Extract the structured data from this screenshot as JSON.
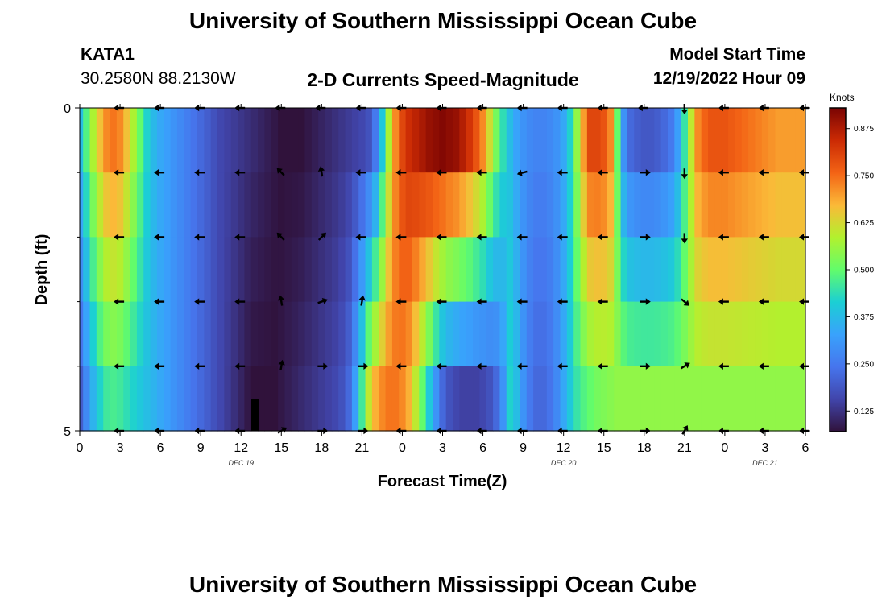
{
  "page": {
    "title": "University of Southern Mississippi Ocean Cube",
    "title_repeat": "University of Southern Mississippi Ocean Cube",
    "station": "KATA1",
    "coords": "30.2580N  88.2130W",
    "subtitle": "2-D Currents Speed-Magnitude",
    "model_start_label": "Model Start Time",
    "model_start_value": "12/19/2022 Hour 09"
  },
  "chart_data": {
    "type": "heatmap",
    "title": "2-D Currents Speed-Magnitude",
    "xlabel": "Forecast Time(Z)",
    "ylabel": "Depth (ft)",
    "x_tick_labels": [
      "0",
      "3",
      "6",
      "9",
      "12",
      "15",
      "18",
      "21",
      "0",
      "3",
      "6",
      "9",
      "12",
      "15",
      "18",
      "21",
      "0",
      "3",
      "6"
    ],
    "x_tick_hours": [
      0,
      3,
      6,
      9,
      12,
      15,
      18,
      21,
      24,
      27,
      30,
      33,
      36,
      39,
      42,
      45,
      48,
      51,
      54
    ],
    "date_labels": [
      {
        "text": "DEC 19",
        "hour": 12
      },
      {
        "text": "DEC 20",
        "hour": 36
      },
      {
        "text": "DEC 21",
        "hour": 51
      }
    ],
    "xlim": [
      0,
      54
    ],
    "ylim": [
      0,
      5
    ],
    "y_tick_labels": [
      "0",
      "5"
    ],
    "y_tick_depths": [
      0,
      5
    ],
    "y_minor_depths": [
      1,
      2,
      3,
      4
    ],
    "colorbar": {
      "unit": "Knots",
      "min": 0.07,
      "max": 0.93,
      "ticks": [
        0.125,
        0.25,
        0.375,
        0.5,
        0.625,
        0.75,
        0.875
      ],
      "tick_labels": [
        "0.125",
        "0.250",
        "0.375",
        "0.500",
        "0.625",
        "0.750",
        "0.875"
      ]
    },
    "speed_profile": {
      "hours": [
        0,
        0.5,
        1,
        1.5,
        2,
        2.5,
        3,
        3.5,
        4,
        4.5,
        5,
        5.5,
        6,
        6.5,
        7,
        7.5,
        8,
        8.5,
        9,
        9.5,
        10,
        10.5,
        11,
        11.5,
        12,
        12.5,
        13,
        13.5,
        14,
        14.5,
        15,
        15.5,
        16,
        16.5,
        17,
        17.5,
        18,
        18.5,
        19,
        19.5,
        20,
        20.5,
        21,
        21.5,
        22,
        22.5,
        23,
        23.5,
        24,
        24.5,
        25,
        25.5,
        26,
        26.5,
        27,
        27.5,
        28,
        28.5,
        29,
        29.5,
        30,
        30.5,
        31,
        31.5,
        32,
        32.5,
        33,
        33.5,
        34,
        34.5,
        35,
        35.5,
        36,
        36.5,
        37,
        37.5,
        38,
        38.5,
        39,
        39.5,
        40,
        40.5,
        41,
        41.5,
        42,
        42.5,
        43,
        43.5,
        44,
        44.5,
        45,
        45.5,
        46,
        46.5,
        47,
        47.5,
        48,
        48.5,
        49,
        49.5,
        50,
        50.5,
        51,
        51.5,
        52,
        52.5,
        53,
        53.5,
        54
      ],
      "surface": [
        0.38,
        0.48,
        0.58,
        0.66,
        0.72,
        0.74,
        0.72,
        0.66,
        0.58,
        0.5,
        0.42,
        0.37,
        0.34,
        0.32,
        0.3,
        0.28,
        0.26,
        0.24,
        0.22,
        0.2,
        0.18,
        0.16,
        0.15,
        0.14,
        0.13,
        0.12,
        0.11,
        0.1,
        0.09,
        0.08,
        0.07,
        0.07,
        0.07,
        0.07,
        0.08,
        0.09,
        0.1,
        0.11,
        0.12,
        0.13,
        0.14,
        0.15,
        0.16,
        0.18,
        0.25,
        0.4,
        0.58,
        0.72,
        0.8,
        0.84,
        0.86,
        0.88,
        0.9,
        0.91,
        0.92,
        0.91,
        0.9,
        0.87,
        0.83,
        0.78,
        0.72,
        0.62,
        0.52,
        0.44,
        0.38,
        0.33,
        0.3,
        0.28,
        0.27,
        0.27,
        0.28,
        0.3,
        0.34,
        0.42,
        0.55,
        0.7,
        0.8,
        0.8,
        0.78,
        0.72,
        0.5,
        0.3,
        0.22,
        0.2,
        0.19,
        0.19,
        0.2,
        0.22,
        0.25,
        0.32,
        0.45,
        0.6,
        0.72,
        0.76,
        0.78,
        0.78,
        0.78,
        0.77,
        0.76,
        0.75,
        0.74,
        0.73,
        0.72,
        0.71,
        0.7,
        0.7,
        0.7,
        0.7,
        0.7
      ],
      "bottom": [
        0.2,
        0.28,
        0.36,
        0.42,
        0.46,
        0.47,
        0.46,
        0.44,
        0.42,
        0.4,
        0.38,
        0.36,
        0.34,
        0.32,
        0.3,
        0.28,
        0.26,
        0.24,
        0.22,
        0.2,
        0.18,
        0.16,
        0.14,
        0.12,
        0.1,
        0.08,
        0.07,
        0.07,
        0.07,
        0.07,
        0.08,
        0.09,
        0.1,
        0.11,
        0.12,
        0.13,
        0.14,
        0.15,
        0.16,
        0.18,
        0.22,
        0.32,
        0.46,
        0.6,
        0.68,
        0.72,
        0.74,
        0.74,
        0.72,
        0.68,
        0.6,
        0.5,
        0.4,
        0.3,
        0.22,
        0.18,
        0.16,
        0.15,
        0.15,
        0.15,
        0.16,
        0.18,
        0.22,
        0.3,
        0.42,
        0.38,
        0.3,
        0.25,
        0.22,
        0.22,
        0.24,
        0.28,
        0.34,
        0.4,
        0.45,
        0.48,
        0.5,
        0.52,
        0.53,
        0.54,
        0.55,
        0.55,
        0.55,
        0.55,
        0.55,
        0.55,
        0.55,
        0.55,
        0.55,
        0.55,
        0.55,
        0.55,
        0.55,
        0.55,
        0.55,
        0.55,
        0.55,
        0.55,
        0.55,
        0.55,
        0.55,
        0.55,
        0.55,
        0.55,
        0.55,
        0.55,
        0.55,
        0.55,
        0.55
      ]
    },
    "vector_hours": [
      3,
      6,
      9,
      12,
      15,
      18,
      21,
      24,
      27,
      30,
      33,
      36,
      39,
      42,
      45,
      48,
      51,
      54
    ],
    "vector_depths": [
      0,
      1,
      2,
      3,
      4,
      5
    ],
    "vector_directions_deg": [
      [
        180,
        180,
        180,
        180,
        180,
        180,
        180,
        180,
        180,
        180,
        180,
        180,
        180,
        180,
        270,
        180,
        180,
        180
      ],
      [
        180,
        180,
        180,
        180,
        135,
        100,
        180,
        180,
        180,
        180,
        195,
        180,
        180,
        0,
        270,
        180,
        180,
        180
      ],
      [
        180,
        180,
        180,
        180,
        135,
        45,
        180,
        180,
        180,
        180,
        180,
        180,
        180,
        0,
        270,
        180,
        180,
        180
      ],
      [
        180,
        180,
        180,
        180,
        100,
        20,
        80,
        180,
        180,
        180,
        180,
        180,
        180,
        0,
        320,
        180,
        180,
        180
      ],
      [
        180,
        180,
        180,
        180,
        80,
        0,
        0,
        180,
        180,
        180,
        180,
        180,
        180,
        0,
        30,
        180,
        180,
        180
      ],
      [
        180,
        180,
        180,
        180,
        30,
        0,
        0,
        180,
        180,
        180,
        180,
        180,
        180,
        0,
        60,
        180,
        180,
        180
      ]
    ]
  }
}
